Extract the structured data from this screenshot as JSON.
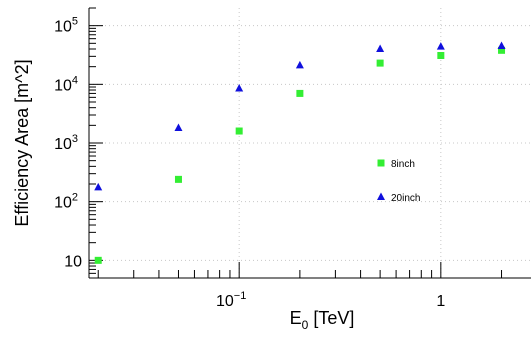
{
  "chart_data": {
    "type": "scatter",
    "title": "",
    "xlabel": {
      "main": "E",
      "sub": "0",
      "rest": " [TeV]"
    },
    "ylabel": "Efficiency Area [m^2]",
    "xscale": "log",
    "yscale": "log",
    "xlim": [
      0.018,
      2.8
    ],
    "ylim": [
      5,
      200000
    ],
    "grid": true,
    "legend_position": "center-right",
    "x_tick_labels": [
      {
        "value": 0.1,
        "base": "10",
        "exp": "−1"
      },
      {
        "value": 1,
        "base": "1",
        "exp": ""
      }
    ],
    "y_tick_labels": [
      {
        "value": 10,
        "base": "10",
        "exp": ""
      },
      {
        "value": 100,
        "base": "10",
        "exp": "2"
      },
      {
        "value": 1000,
        "base": "10",
        "exp": "3"
      },
      {
        "value": 10000,
        "base": "10",
        "exp": "4"
      },
      {
        "value": 100000,
        "base": "10",
        "exp": "5"
      }
    ],
    "series": [
      {
        "name": "8inch",
        "marker": "square",
        "color": "#33ee33",
        "x": [
          0.02,
          0.05,
          0.1,
          0.2,
          0.5,
          1,
          2
        ],
        "y": [
          10,
          240,
          1600,
          7000,
          23000,
          31000,
          38000
        ]
      },
      {
        "name": "20inch",
        "marker": "triangle",
        "color": "#1010dd",
        "x": [
          0.02,
          0.05,
          0.1,
          0.2,
          0.5,
          1,
          2
        ],
        "y": [
          175,
          1800,
          8500,
          21000,
          40000,
          44000,
          45000
        ]
      }
    ]
  }
}
